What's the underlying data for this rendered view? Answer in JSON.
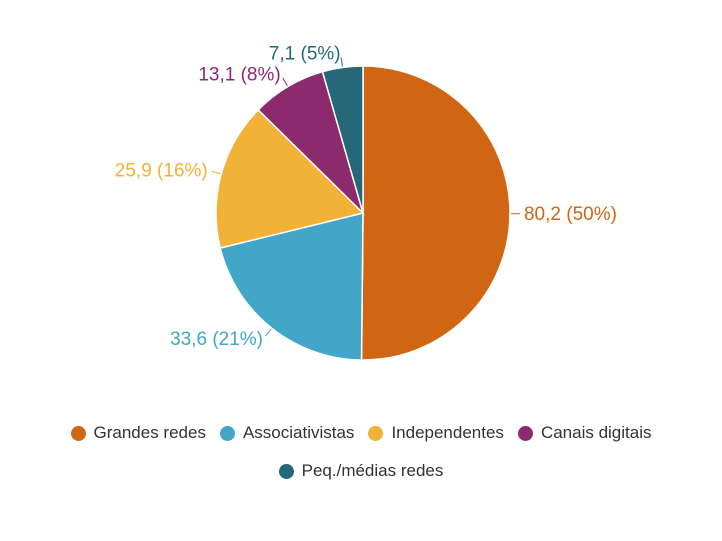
{
  "chart_data": {
    "type": "pie",
    "title": "",
    "slices": [
      {
        "name": "Grandes redes",
        "value": 80.2,
        "percent": 50,
        "label": "80,2 (50%)",
        "color": "#D06514"
      },
      {
        "name": "Associativistas",
        "value": 33.6,
        "percent": 21,
        "label": "33,6 (21%)",
        "color": "#42A6C9"
      },
      {
        "name": "Independentes",
        "value": 25.9,
        "percent": 16,
        "label": "25,9 (16%)",
        "color": "#F2B137"
      },
      {
        "name": "Canais digitais",
        "value": 13.1,
        "percent": 8,
        "label": "13,1 (8%)",
        "color": "#8C2A6E"
      },
      {
        "name": "Peq./médias redes",
        "value": 7.1,
        "percent": 5,
        "label": "7,1 (5%)",
        "color": "#26677A"
      }
    ],
    "legend_position": "bottom"
  }
}
